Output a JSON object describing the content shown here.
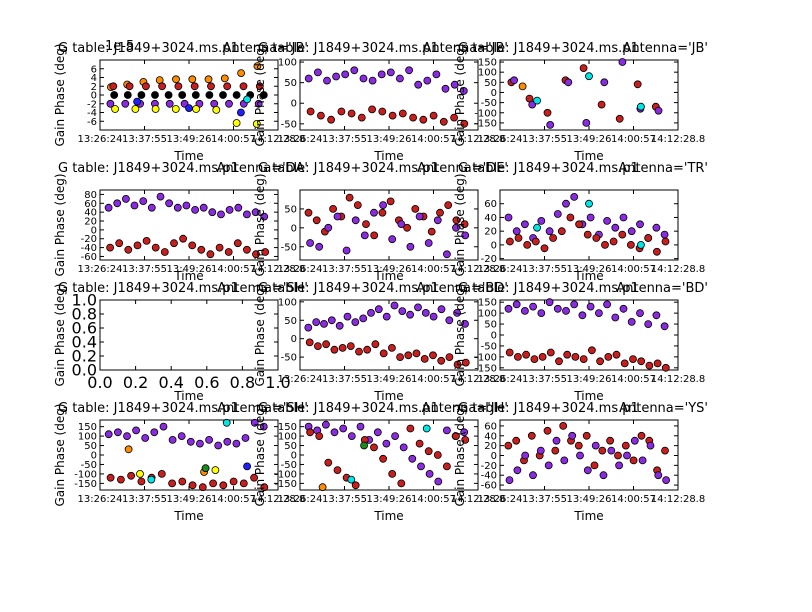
{
  "figure": {
    "colors": {
      "red": "#c81e1e",
      "purple": "#8a2be2",
      "orange": "#ff8c00",
      "yellow": "#ffff00",
      "cyan": "#00e5e5",
      "blue": "#1f1fff",
      "green": "#1a8c1a",
      "black": "#000000"
    }
  },
  "chart_data": [
    {
      "type": "scatter",
      "title": "G table: J1849+3024.ms.p1",
      "antenna_label": "Antenna='JB'",
      "xlabel": "Time",
      "ylabel": "Gain Phase (deg)",
      "corner_annotation": "1e-5",
      "xticks": [
        "13:26:24",
        "13:37:55",
        "13:49:26",
        "14:00:57",
        "14:12:28.8"
      ],
      "ylim": [
        -8,
        8
      ],
      "yticks": [
        "6",
        "4",
        "2",
        "0",
        "-2",
        "-4",
        "-6"
      ],
      "ytick_values": [
        6,
        4,
        2,
        0,
        -2,
        -4,
        -6
      ],
      "series": [
        {
          "color_key": "orange",
          "y": [
            1.8,
            2.4,
            3,
            3.4,
            3.6,
            3.6,
            3.6,
            3.8,
            5,
            6.6
          ]
        },
        {
          "color_key": "red",
          "y": [
            2,
            2,
            2,
            2,
            2,
            2,
            2,
            2,
            2,
            2
          ]
        },
        {
          "color_key": "black",
          "y": [
            0,
            0,
            0,
            0,
            0,
            0,
            0,
            0,
            0,
            0,
            0,
            0
          ]
        },
        {
          "color_key": "purple",
          "y": [
            -2,
            -2,
            -2,
            -2,
            -2,
            -2,
            -2,
            -2,
            -2,
            -2,
            -2
          ]
        },
        {
          "color_key": "yellow",
          "y": [
            -3.2,
            -3.2,
            -3.2,
            -3.2,
            -3.2,
            -3.4,
            -6.4,
            -6.6
          ]
        },
        {
          "color_key": "blue",
          "y": [
            -1.5,
            -3,
            -4
          ]
        },
        {
          "color_key": "cyan",
          "y": [
            -1
          ]
        }
      ]
    },
    {
      "type": "scatter",
      "title": "G table: J1849+3024.ms.p1",
      "antenna_label": "Antenna='JB'",
      "xlabel": "Time",
      "ylabel": "Gain Phase (deg)",
      "xticks": [
        "13:26:24",
        "13:37:55",
        "13:49:26",
        "14:00:57",
        "14:12:28.8"
      ],
      "ylim": [
        -65,
        105
      ],
      "yticks": [
        "100",
        "50",
        "0",
        "-50"
      ],
      "ytick_values": [
        100,
        50,
        0,
        -50
      ],
      "series": [
        {
          "color_key": "purple",
          "y": [
            60,
            75,
            55,
            65,
            70,
            80,
            60,
            55,
            70,
            75,
            60,
            80,
            45,
            55,
            70,
            35,
            45,
            30
          ]
        },
        {
          "color_key": "red",
          "y": [
            -20,
            -30,
            -40,
            -20,
            -25,
            -35,
            -15,
            -20,
            -30,
            -25,
            -35,
            -40,
            -30,
            -45,
            -35,
            -50
          ]
        }
      ]
    },
    {
      "type": "scatter",
      "title": "G table: J1849+3024.ms.p1",
      "antenna_label": "Antenna='JB'",
      "xlabel": "Time",
      "ylabel": "Gain Phase (deg)",
      "xticks": [
        "13:26:24",
        "13:37:55",
        "13:49:26",
        "14:00:57",
        "14:12:28.8"
      ],
      "ylim": [
        -185,
        160
      ],
      "yticks": [
        "150",
        "100",
        "50",
        "0",
        "-50",
        "-100",
        "-150"
      ],
      "ytick_values": [
        150,
        100,
        50,
        0,
        -50,
        -100,
        -150
      ],
      "series": [
        {
          "color_key": "red",
          "y": [
            50,
            -30,
            -100,
            60,
            120,
            -60,
            -130,
            40,
            -70
          ]
        },
        {
          "color_key": "purple",
          "y": [
            60,
            -60,
            -160,
            50,
            -150,
            50,
            150,
            -80,
            -90
          ]
        },
        {
          "color_key": "cyan",
          "y": [
            -40,
            80,
            -70
          ]
        },
        {
          "color_key": "orange",
          "y": [
            30
          ]
        }
      ]
    },
    {
      "type": "scatter",
      "title": "G table: J1849+3024.ms.p1",
      "antenna_label": "Antenna='DA'",
      "xlabel": "Time",
      "ylabel": "Gain Phase (deg)",
      "xticks": [
        "13:26:24",
        "13:37:55",
        "13:49:26",
        "14:00:57",
        "14:12:28.8"
      ],
      "ylim": [
        -68,
        90
      ],
      "yticks": [
        "80",
        "60",
        "40",
        "20",
        "0",
        "-20",
        "-40",
        "-60"
      ],
      "ytick_values": [
        80,
        60,
        40,
        20,
        0,
        -20,
        -40,
        -60
      ],
      "series": [
        {
          "color_key": "purple",
          "y": [
            50,
            60,
            70,
            55,
            65,
            50,
            75,
            60,
            50,
            55,
            45,
            50,
            40,
            35,
            45,
            50,
            35,
            40,
            30
          ]
        },
        {
          "color_key": "red",
          "y": [
            -40,
            -30,
            -45,
            -35,
            -25,
            -40,
            -50,
            -30,
            -20,
            -35,
            -45,
            -55,
            -40,
            -50,
            -30,
            -45,
            -55,
            -50
          ]
        }
      ]
    },
    {
      "type": "scatter",
      "title": "G table: J1849+3024.ms.p1",
      "antenna_label": "Antenna='DE'",
      "xlabel": "Time",
      "ylabel": "Gain Phase (deg)",
      "xticks": [
        "13:26:24",
        "13:37:55",
        "13:49:26",
        "14:00:57",
        "14:12:28.8"
      ],
      "ylim": [
        -85,
        100
      ],
      "yticks": [
        "50",
        "0",
        "-50"
      ],
      "ytick_values": [
        50,
        0,
        -50
      ],
      "series": [
        {
          "color_key": "red",
          "y": [
            40,
            20,
            -10,
            50,
            30,
            80,
            60,
            10,
            -20,
            40,
            70,
            20,
            0,
            50,
            30,
            -10,
            40,
            60,
            20,
            10
          ]
        },
        {
          "color_key": "purple",
          "y": [
            -40,
            -50,
            0,
            30,
            -60,
            20,
            -20,
            40,
            60,
            -30,
            10,
            -50,
            30,
            -40,
            20,
            -70,
            0,
            -20
          ]
        }
      ]
    },
    {
      "type": "scatter",
      "title": "G table: J1849+3024.ms.p1",
      "antenna_label": "Antenna='TR'",
      "xlabel": "Time",
      "ylabel": "Gain Phase (deg)",
      "xticks": [
        "13:26:24",
        "13:37:55",
        "13:49:26",
        "14:00:57",
        "14:12:28.8"
      ],
      "ylim": [
        -22,
        80
      ],
      "yticks": [
        "60",
        "40",
        "20",
        "0",
        "-20"
      ],
      "ytick_values": [
        60,
        40,
        20,
        0,
        -20
      ],
      "series": [
        {
          "color_key": "purple",
          "y": [
            40,
            20,
            30,
            10,
            35,
            20,
            45,
            60,
            70,
            30,
            40,
            15,
            35,
            25,
            40,
            20,
            30,
            10,
            25,
            15
          ]
        },
        {
          "color_key": "red",
          "y": [
            5,
            10,
            0,
            5,
            -5,
            10,
            20,
            40,
            30,
            15,
            10,
            0,
            5,
            15,
            0,
            -5,
            10,
            -10,
            5
          ]
        },
        {
          "color_key": "cyan",
          "y": [
            25,
            60,
            0
          ]
        }
      ]
    },
    {
      "type": "scatter",
      "title": "G table: J1849+3024.ms.p1",
      "antenna_label": "Antenna='SH'",
      "xlabel": "Time",
      "ylabel": "Gain Phase (deg)",
      "xticks": [
        "0.0",
        "0.2",
        "0.4",
        "0.6",
        "0.8",
        "1.0"
      ],
      "xlim": [
        0,
        1
      ],
      "ylim": [
        0,
        1
      ],
      "yticks": [
        "1.0",
        "0.8",
        "0.6",
        "0.4",
        "0.2",
        "0.0"
      ],
      "ytick_values": [
        1,
        0.8,
        0.6,
        0.4,
        0.2,
        0
      ],
      "series": []
    },
    {
      "type": "scatter",
      "title": "G table: J1849+3024.ms.p1",
      "antenna_label": "Antenna='BD'",
      "xlabel": "Time",
      "ylabel": "Gain Phase (deg)",
      "xticks": [
        "13:26:24",
        "13:37:55",
        "13:49:26",
        "14:00:57",
        "14:12:28.8"
      ],
      "ylim": [
        -85,
        105
      ],
      "yticks": [
        "100",
        "50",
        "0",
        "-50"
      ],
      "ytick_values": [
        100,
        50,
        0,
        -50
      ],
      "series": [
        {
          "color_key": "purple",
          "y": [
            30,
            45,
            40,
            50,
            35,
            60,
            45,
            55,
            70,
            80,
            60,
            90,
            75,
            65,
            85,
            70,
            60,
            80,
            50,
            70,
            40
          ]
        },
        {
          "color_key": "red",
          "y": [
            -10,
            -20,
            -15,
            -30,
            -25,
            -20,
            -35,
            -30,
            -15,
            -40,
            -25,
            -50,
            -45,
            -40,
            -55,
            -45,
            -60,
            -50,
            -70,
            -65
          ]
        }
      ]
    },
    {
      "type": "scatter",
      "title": "G table: J1849+3024.ms.p1",
      "antenna_label": "Antenna='BD'",
      "xlabel": "Time",
      "ylabel": "Gain Phase (deg)",
      "xticks": [
        "13:26:24",
        "13:37:55",
        "13:49:26",
        "14:00:57",
        "14:12:28.8"
      ],
      "ylim": [
        -160,
        160
      ],
      "yticks": [
        "150",
        "100",
        "50",
        "0",
        "-50",
        "-100",
        "-150"
      ],
      "ytick_values": [
        150,
        100,
        50,
        0,
        -50,
        -100,
        -150
      ],
      "series": [
        {
          "color_key": "purple",
          "y": [
            120,
            140,
            110,
            130,
            100,
            150,
            120,
            110,
            140,
            90,
            130,
            100,
            140,
            80,
            120,
            60,
            100,
            50,
            90,
            40
          ]
        },
        {
          "color_key": "red",
          "y": [
            -80,
            -100,
            -90,
            -110,
            -100,
            -80,
            -120,
            -90,
            -100,
            -110,
            -70,
            -120,
            -100,
            -90,
            -130,
            -110,
            -120,
            -140,
            -130,
            -150
          ]
        }
      ]
    },
    {
      "type": "scatter",
      "title": "G table: J1849+3024.ms.p1",
      "antenna_label": "Antenna='SH'",
      "xlabel": "Time",
      "ylabel": "Gain Phase (deg)",
      "xticks": [
        "13:26:24",
        "13:37:55",
        "13:49:26",
        "14:00:57",
        "14:12:28.8"
      ],
      "ylim": [
        -185,
        185
      ],
      "yticks": [
        "150",
        "100",
        "50",
        "0",
        "-50",
        "-100",
        "-150"
      ],
      "ytick_values": [
        150,
        100,
        50,
        0,
        -50,
        -100,
        -150
      ],
      "series": [
        {
          "color_key": "purple",
          "y": [
            110,
            120,
            100,
            130,
            90,
            120,
            150,
            80,
            100,
            70,
            60,
            80,
            50,
            70,
            60,
            90,
            170,
            150
          ]
        },
        {
          "color_key": "red",
          "y": [
            -120,
            -130,
            -110,
            -140,
            -120,
            -100,
            -150,
            -140,
            -160,
            -170,
            -150,
            -160,
            -140,
            -150,
            -120,
            -170
          ]
        },
        {
          "color_key": "cyan",
          "y": [
            -130,
            170
          ]
        },
        {
          "color_key": "orange",
          "y": [
            30,
            -90
          ]
        },
        {
          "color_key": "yellow",
          "y": [
            -100,
            -80
          ]
        },
        {
          "color_key": "green",
          "y": [
            -70
          ]
        },
        {
          "color_key": "blue",
          "y": [
            -60
          ]
        }
      ]
    },
    {
      "type": "scatter",
      "title": "G table: J1849+3024.ms.p1",
      "antenna_label": "Antenna='JH'",
      "xlabel": "Time",
      "ylabel": "Gain Phase (deg)",
      "xticks": [
        "13:26:24",
        "13:37:55",
        "13:49:26",
        "14:00:57",
        "14:12:28.8"
      ],
      "ylim": [
        -185,
        185
      ],
      "yticks": [
        "150",
        "100",
        "50",
        "0",
        "-50",
        "-100",
        "-150"
      ],
      "ytick_values": [
        150,
        100,
        50,
        0,
        -50,
        -100,
        -150
      ],
      "series": [
        {
          "color_key": "purple",
          "y": [
            150,
            130,
            160,
            120,
            140,
            100,
            150,
            80,
            120,
            60,
            100,
            40,
            -20,
            -60,
            -100,
            -140,
            130,
            100,
            120
          ]
        },
        {
          "color_key": "red",
          "y": [
            120,
            100,
            -40,
            -80,
            -120,
            -160,
            80,
            40,
            -20,
            -100,
            -150,
            140,
            60,
            20,
            0,
            -60,
            100,
            80
          ]
        },
        {
          "color_key": "cyan",
          "y": [
            -130,
            140
          ]
        },
        {
          "color_key": "orange",
          "y": [
            -170
          ]
        },
        {
          "color_key": "green",
          "y": [
            50
          ]
        }
      ]
    },
    {
      "type": "scatter",
      "title": "G table: J1849+3024.ms.p1",
      "antenna_label": "Antenna='YS'",
      "xlabel": "Time",
      "ylabel": "Gain Phase (deg)",
      "xticks": [
        "13:26:24",
        "13:37:55",
        "13:49:26",
        "14:00:57",
        "14:12:28.8"
      ],
      "ylim": [
        -70,
        72
      ],
      "yticks": [
        "60",
        "40",
        "20",
        "0",
        "-20",
        "-40",
        "-60"
      ],
      "ytick_values": [
        60,
        40,
        20,
        0,
        -20,
        -40,
        -60
      ],
      "series": [
        {
          "color_key": "red",
          "y": [
            20,
            30,
            -10,
            40,
            0,
            50,
            10,
            60,
            30,
            20,
            40,
            -20,
            10,
            30,
            0,
            20,
            -10,
            40,
            30,
            -30,
            10
          ]
        },
        {
          "color_key": "purple",
          "y": [
            -50,
            -30,
            0,
            -40,
            10,
            -20,
            30,
            -10,
            40,
            0,
            -30,
            20,
            -40,
            10,
            -20,
            0,
            30,
            -10,
            20,
            -40,
            -50
          ]
        }
      ]
    }
  ]
}
